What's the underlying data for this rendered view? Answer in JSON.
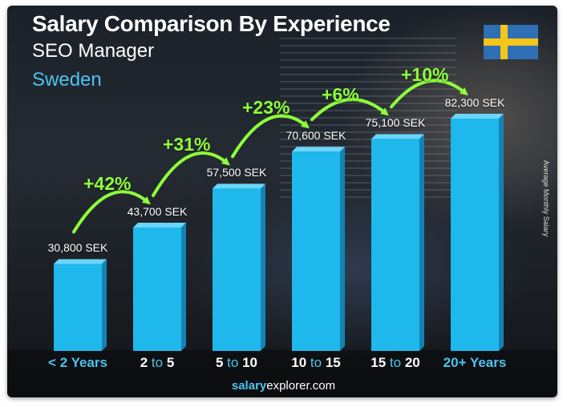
{
  "header": {
    "title": "Salary Comparison By Experience",
    "subtitle": "SEO Manager",
    "country": "Sweden"
  },
  "flag": {
    "name": "sweden-flag-icon",
    "blue": "#2f6fb5",
    "yellow": "#f5c518"
  },
  "footer": {
    "brand_bold": "salary",
    "brand_rest": "explorer.com"
  },
  "colors": {
    "bar": "#1fb8ec",
    "bar_side": "#1483b4",
    "bar_top": "#6ad6fb",
    "increase": "#8eff3a",
    "category": "#4cc3f0"
  },
  "chart_data": {
    "type": "bar",
    "title": "Salary Comparison By Experience",
    "ylabel": "Average Monthly Salary",
    "categories": [
      {
        "bold": "< 2 Years",
        "pre": "",
        "mid": "",
        "post": ""
      },
      {
        "bold": "",
        "pre": "2",
        "mid": " to ",
        "post": "5"
      },
      {
        "bold": "",
        "pre": "5",
        "mid": " to ",
        "post": "10"
      },
      {
        "bold": "",
        "pre": "10",
        "mid": " to ",
        "post": "15"
      },
      {
        "bold": "",
        "pre": "15",
        "mid": " to ",
        "post": "20"
      },
      {
        "bold": "20+ Years",
        "pre": "",
        "mid": "",
        "post": ""
      }
    ],
    "values": [
      30800,
      43700,
      57500,
      70600,
      75100,
      82300
    ],
    "value_labels": [
      "30,800 SEK",
      "43,700 SEK",
      "57,500 SEK",
      "70,600 SEK",
      "75,100 SEK",
      "82,300 SEK"
    ],
    "increases": [
      "+42%",
      "+31%",
      "+23%",
      "+6%",
      "+10%"
    ],
    "unit": "SEK"
  }
}
